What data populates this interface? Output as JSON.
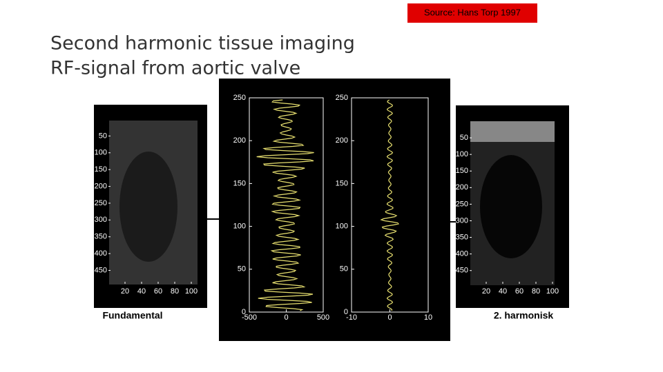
{
  "source": "Source: Hans Torp 1997",
  "title": [
    "Second harmonic tissue imaging",
    "RF-signal from aortic valve"
  ],
  "images": [
    {
      "caption": "Fundamental",
      "xlim": [
        0,
        110
      ],
      "ylim": [
        0,
        490
      ],
      "xticks": [
        20,
        40,
        60,
        80,
        100
      ],
      "yticks": [
        50,
        100,
        150,
        200,
        250,
        300,
        350,
        400,
        450
      ]
    },
    {
      "caption": "2. harmonisk",
      "xlim": [
        0,
        110
      ],
      "ylim": [
        0,
        490
      ],
      "xticks": [
        20,
        40,
        60,
        80,
        100
      ],
      "yticks": [
        50,
        100,
        150,
        200,
        250,
        300,
        350,
        400,
        450
      ]
    }
  ],
  "plots": [
    {
      "xlim": [
        -500,
        500
      ],
      "ylim": [
        0,
        250
      ],
      "xticks": [
        -500,
        0,
        500
      ],
      "yticks": [
        0,
        50,
        100,
        150,
        200,
        250
      ]
    },
    {
      "xlim": [
        -10,
        10
      ],
      "ylim": [
        0,
        250
      ],
      "xticks": [
        -10,
        0,
        10
      ],
      "yticks": [
        0,
        50,
        100,
        150,
        200,
        250
      ]
    }
  ]
}
